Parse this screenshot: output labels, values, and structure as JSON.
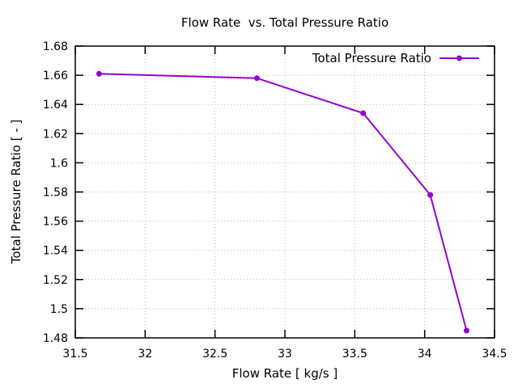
{
  "chart_data": {
    "type": "line",
    "title": "Flow Rate  vs. Total Pressure Ratio",
    "xlabel": "Flow Rate [ kg/s ]",
    "ylabel": "Total Pressure Ratio [ - ]",
    "xlim": [
      31.5,
      34.5
    ],
    "ylim": [
      1.48,
      1.68
    ],
    "xtick_values": [
      31.5,
      32,
      32.5,
      33,
      33.5,
      34,
      34.5
    ],
    "xtick_labels": [
      "31.5",
      "32",
      "32.5",
      "33",
      "33.5",
      "34",
      "34.5"
    ],
    "ytick_values": [
      1.48,
      1.5,
      1.52,
      1.54,
      1.56,
      1.58,
      1.6,
      1.62,
      1.64,
      1.66,
      1.68
    ],
    "ytick_labels": [
      "1.48",
      "1.5",
      "1.52",
      "1.54",
      "1.56",
      "1.58",
      "1.6",
      "1.62",
      "1.64",
      "1.66",
      "1.68"
    ],
    "grid": true,
    "legend": {
      "position": "top-right-inside",
      "entries": [
        "Total Pressure Ratio"
      ]
    },
    "series": [
      {
        "name": "Total Pressure Ratio",
        "color": "#9400d3",
        "marker": "filled-circle",
        "points": [
          {
            "x": 31.67,
            "y": 1.661
          },
          {
            "x": 32.8,
            "y": 1.658
          },
          {
            "x": 33.56,
            "y": 1.634
          },
          {
            "x": 34.04,
            "y": 1.578
          },
          {
            "x": 34.3,
            "y": 1.485
          }
        ]
      }
    ]
  }
}
